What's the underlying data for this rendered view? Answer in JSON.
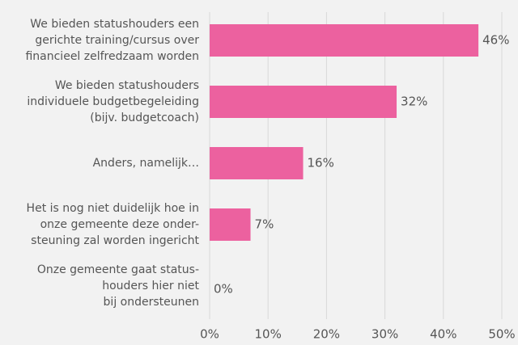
{
  "chart_data": {
    "type": "bar",
    "orientation": "horizontal",
    "categories": [
      [
        "We bieden statushouders een",
        "gerichte training/cursus over",
        "financieel zelfredzaam worden"
      ],
      [
        "We bieden statushouders",
        "individuele budgetbegeleiding",
        "(bijv. budgetcoach)"
      ],
      [
        "Anders, namelijk…"
      ],
      [
        "Het is nog niet duidelijk hoe in",
        "onze gemeente deze onder-",
        "steuning zal worden ingericht"
      ],
      [
        "Onze gemeente gaat status-",
        "houders hier niet",
        "bij ondersteunen"
      ]
    ],
    "values": [
      46,
      32,
      16,
      7,
      0
    ],
    "value_labels": [
      "46%",
      "32%",
      "16%",
      "7%",
      "0%"
    ],
    "color": "#ec619f",
    "xlim": [
      0,
      50
    ],
    "xticks": [
      {
        "value": 0,
        "label": "0%"
      },
      {
        "value": 10,
        "label": "10%"
      },
      {
        "value": 20,
        "label": "20%"
      },
      {
        "value": 30,
        "label": "30%"
      },
      {
        "value": 40,
        "label": "40%"
      },
      {
        "value": 50,
        "label": "50%"
      }
    ],
    "grid": true
  }
}
